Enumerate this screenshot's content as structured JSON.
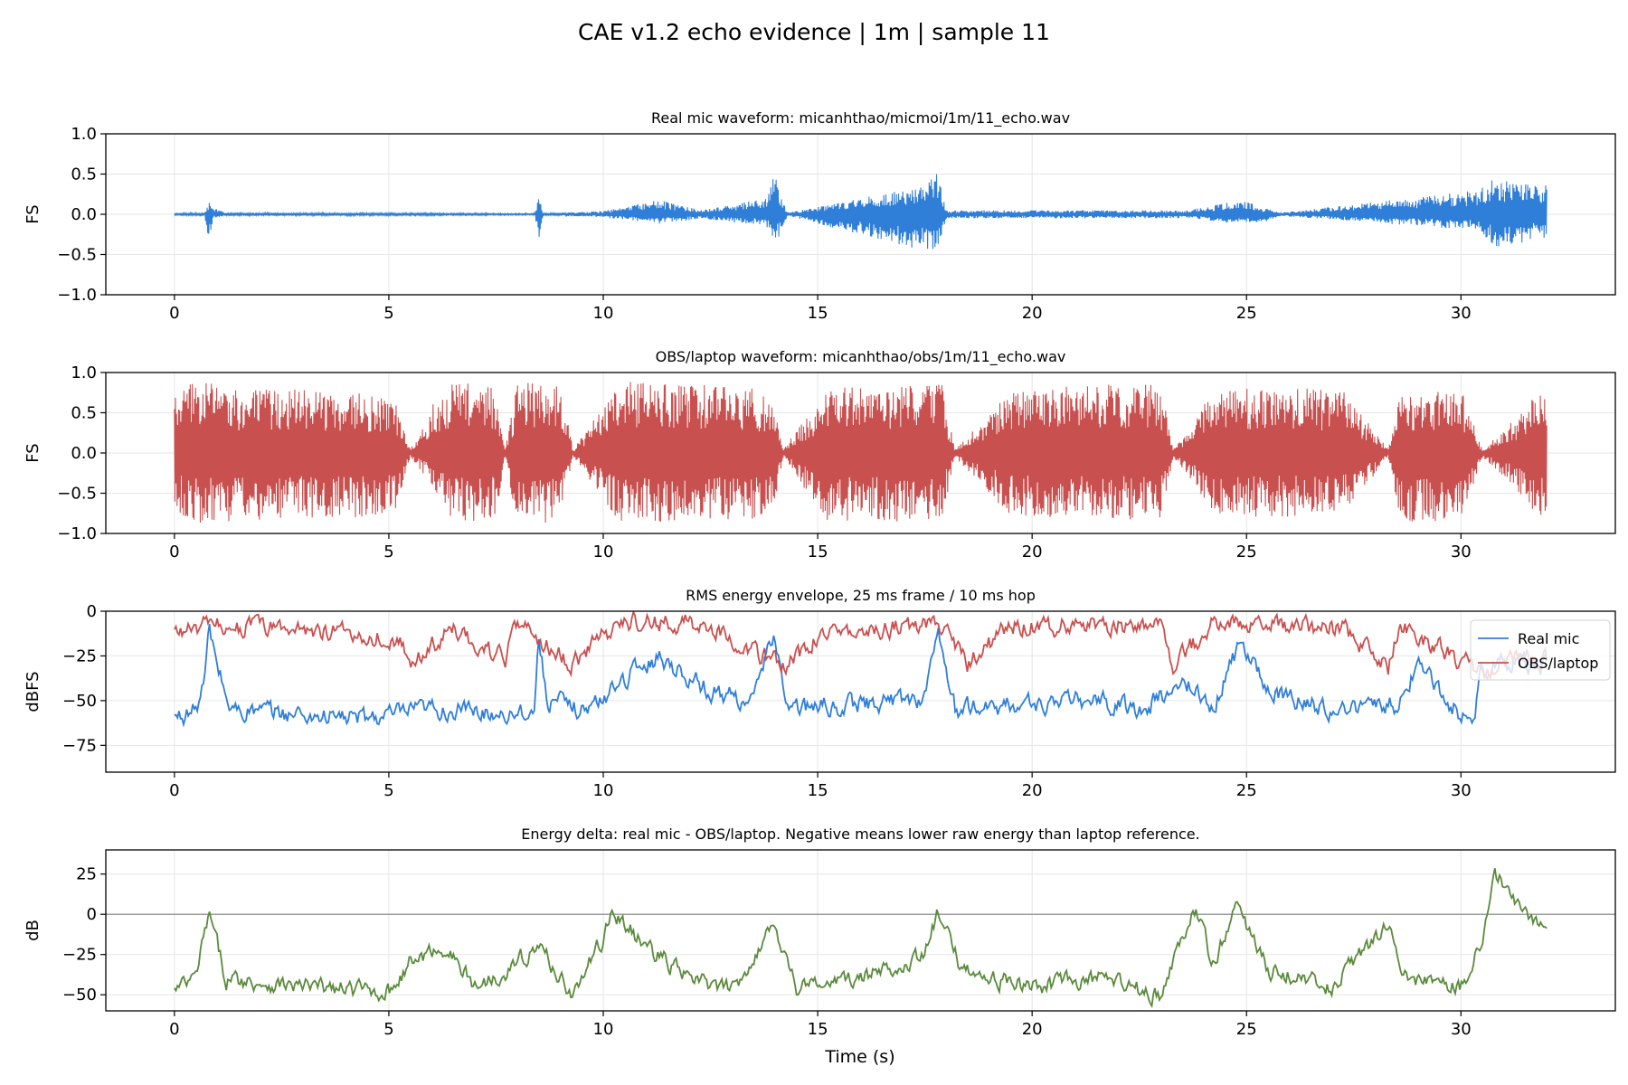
{
  "figure": {
    "suptitle": "CAE v1.2 echo evidence | 1m | sample 11",
    "xlabel": "Time (s)"
  },
  "colors": {
    "real_mic": "#2f7ed8",
    "obs_laptop": "#c8504f",
    "delta": "#5a8a3c",
    "grid": "#e6e6e6",
    "zero_line": "#808080"
  },
  "chart_data": [
    {
      "type": "line",
      "title": "Real mic waveform: micanhthao/micmoi/1m/11_echo.wav",
      "xlabel": "",
      "ylabel": "FS",
      "xlim": [
        -1.6,
        33.6
      ],
      "ylim": [
        -1.0,
        1.0
      ],
      "xticks": [
        0,
        5,
        10,
        15,
        20,
        25,
        30
      ],
      "yticks": [
        -1.0,
        -0.5,
        0.0,
        0.5,
        1.0
      ],
      "ytick_labels": [
        "−1.0",
        "−0.5",
        "0.0",
        "0.5",
        "1.0"
      ],
      "grid": true,
      "series": [
        {
          "color": "#2f7ed8",
          "envelope": [
            [
              0,
              0.01,
              -0.01
            ],
            [
              0.7,
              0.02,
              -0.02
            ],
            [
              0.8,
              0.15,
              -0.35
            ],
            [
              0.9,
              0.08,
              -0.05
            ],
            [
              1.2,
              0.02,
              -0.02
            ],
            [
              8.4,
              0.01,
              -0.01
            ],
            [
              8.5,
              0.22,
              -0.3
            ],
            [
              8.6,
              0.01,
              -0.01
            ],
            [
              10.0,
              0.04,
              -0.04
            ],
            [
              11.3,
              0.18,
              -0.12
            ],
            [
              12.3,
              0.05,
              -0.05
            ],
            [
              13.8,
              0.2,
              -0.15
            ],
            [
              14.0,
              0.52,
              -0.38
            ],
            [
              14.1,
              0.3,
              -0.28
            ],
            [
              14.3,
              0.02,
              -0.02
            ],
            [
              17.4,
              0.35,
              -0.45
            ],
            [
              17.8,
              0.52,
              -0.45
            ],
            [
              18.0,
              0.05,
              -0.05
            ],
            [
              23.6,
              0.05,
              -0.05
            ],
            [
              24.9,
              0.18,
              -0.12
            ],
            [
              25.4,
              0.08,
              -0.1
            ],
            [
              25.8,
              0.02,
              -0.02
            ],
            [
              30.4,
              0.3,
              -0.2
            ],
            [
              30.8,
              0.45,
              -0.4
            ],
            [
              31.3,
              0.4,
              -0.4
            ],
            [
              31.8,
              0.35,
              -0.25
            ],
            [
              32.0,
              0.38,
              -0.38
            ]
          ]
        }
      ]
    },
    {
      "type": "line",
      "title": "OBS/laptop waveform: micanhthao/obs/1m/11_echo.wav",
      "xlabel": "",
      "ylabel": "FS",
      "xlim": [
        -1.6,
        33.6
      ],
      "ylim": [
        -1.0,
        1.0
      ],
      "xticks": [
        0,
        5,
        10,
        15,
        20,
        25,
        30
      ],
      "yticks": [
        -1.0,
        -0.5,
        0.0,
        0.5,
        1.0
      ],
      "ytick_labels": [
        "−1.0",
        "−0.5",
        "0.0",
        "0.5",
        "1.0"
      ],
      "grid": true,
      "series": [
        {
          "color": "#c8504f",
          "envelope": [
            [
              0,
              0.7,
              -0.7
            ],
            [
              0.5,
              0.95,
              -0.9
            ],
            [
              1.5,
              0.8,
              -0.85
            ],
            [
              3.0,
              0.8,
              -0.8
            ],
            [
              4.5,
              0.75,
              -0.8
            ],
            [
              5.2,
              0.6,
              -0.7
            ],
            [
              5.5,
              0.05,
              -0.05
            ],
            [
              6.0,
              0.6,
              -0.4
            ],
            [
              6.5,
              0.9,
              -0.85
            ],
            [
              7.5,
              0.8,
              -0.85
            ],
            [
              7.7,
              0.05,
              -0.05
            ],
            [
              8.0,
              0.9,
              -0.9
            ],
            [
              9.0,
              0.85,
              -0.85
            ],
            [
              9.3,
              0.04,
              -0.04
            ],
            [
              10.4,
              0.9,
              -0.9
            ],
            [
              11.5,
              0.9,
              -0.85
            ],
            [
              12.5,
              0.85,
              -0.85
            ],
            [
              13.5,
              0.8,
              -0.85
            ],
            [
              14.0,
              0.6,
              -0.7
            ],
            [
              14.2,
              0.05,
              -0.05
            ],
            [
              15.2,
              0.8,
              -0.85
            ],
            [
              16.5,
              0.85,
              -0.85
            ],
            [
              17.9,
              0.85,
              -0.85
            ],
            [
              18.2,
              0.05,
              -0.05
            ],
            [
              19.5,
              0.8,
              -0.8
            ],
            [
              21.5,
              0.85,
              -0.8
            ],
            [
              23.0,
              0.85,
              -0.85
            ],
            [
              23.3,
              0.05,
              -0.05
            ],
            [
              24.2,
              0.75,
              -0.75
            ],
            [
              25.0,
              0.8,
              -0.8
            ],
            [
              26.5,
              0.8,
              -0.8
            ],
            [
              27.3,
              0.75,
              -0.75
            ],
            [
              28.3,
              0.05,
              -0.05
            ],
            [
              28.6,
              0.75,
              -0.85
            ],
            [
              30.0,
              0.8,
              -0.85
            ],
            [
              30.5,
              0.05,
              -0.05
            ],
            [
              31.2,
              0.4,
              -0.4
            ],
            [
              31.7,
              0.75,
              -0.8
            ],
            [
              32.0,
              0.7,
              -0.75
            ]
          ]
        }
      ]
    },
    {
      "type": "line",
      "title": "RMS energy envelope, 25 ms frame / 10 ms hop",
      "xlabel": "",
      "ylabel": "dBFS",
      "xlim": [
        -1.6,
        33.6
      ],
      "ylim": [
        -90,
        0
      ],
      "xticks": [
        0,
        5,
        10,
        15,
        20,
        25,
        30
      ],
      "yticks": [
        -75,
        -50,
        -25,
        0
      ],
      "ytick_labels": [
        "−75",
        "−50",
        "−25",
        "0"
      ],
      "grid": true,
      "legend": "top-right",
      "series": [
        {
          "name": "Real mic",
          "color": "#2f7ed8",
          "x": [
            0,
            0.5,
            0.7,
            0.8,
            1.0,
            1.3,
            3.0,
            4.5,
            6.0,
            7.5,
            8.4,
            8.5,
            8.7,
            9.5,
            10.0,
            10.3,
            11.3,
            12.5,
            13.5,
            14.0,
            14.3,
            16.0,
            17.5,
            17.8,
            18.2,
            20.0,
            21.5,
            22.5,
            23.6,
            24.2,
            24.9,
            25.5,
            27.0,
            28.5,
            29.0,
            30.0,
            30.3,
            30.5,
            32.0
          ],
          "y": [
            -60,
            -55,
            -40,
            -10,
            -30,
            -55,
            -58,
            -60,
            -55,
            -57,
            -55,
            -15,
            -50,
            -55,
            -50,
            -40,
            -25,
            -45,
            -50,
            -12,
            -55,
            -52,
            -48,
            -10,
            -55,
            -52,
            -50,
            -55,
            -40,
            -55,
            -15,
            -45,
            -55,
            -52,
            -30,
            -58,
            -58,
            -30,
            -30
          ]
        },
        {
          "name": "OBS/laptop",
          "color": "#c8504f",
          "x": [
            0,
            1.0,
            3.0,
            5.2,
            5.5,
            6.5,
            7.7,
            8.0,
            9.3,
            10.4,
            12.5,
            14.2,
            15.2,
            17.9,
            18.5,
            19.5,
            23.0,
            23.3,
            24.2,
            25.5,
            27.3,
            28.3,
            28.6,
            30.5,
            31.5,
            32.0
          ],
          "y": [
            -12,
            -8,
            -10,
            -15,
            -30,
            -10,
            -28,
            -8,
            -30,
            -5,
            -8,
            -32,
            -10,
            -8,
            -30,
            -8,
            -8,
            -30,
            -8,
            -8,
            -10,
            -32,
            -8,
            -35,
            -25,
            -28
          ]
        }
      ]
    },
    {
      "type": "line",
      "title": "Energy delta: real mic - OBS/laptop. Negative means lower raw energy than laptop reference.",
      "xlabel": "Time (s)",
      "ylabel": "dB",
      "xlim": [
        -1.6,
        33.6
      ],
      "ylim": [
        -60,
        40
      ],
      "xticks": [
        0,
        5,
        10,
        15,
        20,
        25,
        30
      ],
      "yticks": [
        -50,
        -25,
        0,
        25
      ],
      "ytick_labels": [
        "−50",
        "−25",
        "0",
        "25"
      ],
      "grid": true,
      "hline": 0,
      "series": [
        {
          "color": "#5a8a3c",
          "x": [
            0,
            0.5,
            0.8,
            1.2,
            3.0,
            5.0,
            5.5,
            6.3,
            7.0,
            7.7,
            8.5,
            9.3,
            10.0,
            10.2,
            11.0,
            12.0,
            13.0,
            14.0,
            14.5,
            16.0,
            17.5,
            17.8,
            18.3,
            19.0,
            20.0,
            21.5,
            23.0,
            23.8,
            24.2,
            24.8,
            25.5,
            27.0,
            28.3,
            28.6,
            30.0,
            30.5,
            30.8,
            31.2,
            32.0
          ],
          "y": [
            -48,
            -40,
            0,
            -40,
            -45,
            -48,
            -30,
            -20,
            -45,
            -35,
            -20,
            -50,
            -15,
            2,
            -20,
            -40,
            -48,
            -5,
            -45,
            -40,
            -25,
            0,
            -30,
            -40,
            -45,
            -40,
            -50,
            3,
            -30,
            5,
            -35,
            -45,
            -5,
            -40,
            -45,
            -15,
            25,
            10,
            -12
          ]
        }
      ]
    }
  ]
}
